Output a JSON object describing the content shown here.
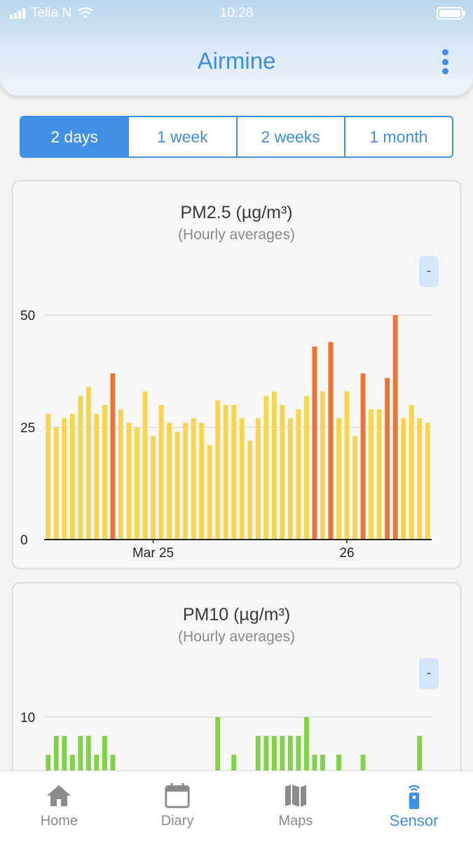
{
  "status_bar": {
    "carrier": "Telia N",
    "time": "10:28"
  },
  "header": {
    "title": "Airmine"
  },
  "range_tabs": {
    "items": [
      "2 days",
      "1 week",
      "2 weeks",
      "1 month"
    ],
    "selected": "2 days"
  },
  "colors": {
    "accent": "#3f8fe6",
    "pm25_normal": "#f8d54a",
    "pm25_high": "#ee7430",
    "pm10": "#7ed444"
  },
  "cards": [
    {
      "title": "PM2.5 (µg/m³)",
      "subtitle": "(Hourly averages)",
      "collapse_label": "-"
    },
    {
      "title": "PM10 (µg/m³)",
      "subtitle": "(Hourly averages)",
      "collapse_label": "-"
    }
  ],
  "chart_data": [
    {
      "type": "bar",
      "title": "PM2.5 (µg/m³)",
      "subtitle": "(Hourly averages)",
      "unit": "µg/m³",
      "ylim": [
        0,
        50
      ],
      "yticks": [
        0,
        25,
        50
      ],
      "x_tick_labels": [
        {
          "label": "Mar 25",
          "index": 13
        },
        {
          "label": "26",
          "index": 37
        }
      ],
      "grid": true,
      "values": [
        28,
        25,
        27,
        28,
        32,
        34,
        28,
        30,
        37,
        29,
        26,
        25,
        33,
        23,
        30,
        26,
        24,
        26,
        27,
        26,
        21,
        31,
        30,
        30,
        27,
        22,
        27,
        32,
        33,
        30,
        27,
        29,
        32,
        43,
        33,
        44,
        27,
        33,
        23,
        37,
        29,
        29,
        36,
        50,
        27,
        30,
        27,
        26
      ],
      "high_threshold": 35
    },
    {
      "type": "bar",
      "title": "PM10 (µg/m³)",
      "subtitle": "(Hourly averages)",
      "unit": "µg/m³",
      "yticks": [
        10
      ],
      "grid": true,
      "values": [
        6,
        8,
        8,
        6,
        8,
        8,
        6,
        8,
        6,
        null,
        null,
        null,
        null,
        null,
        null,
        null,
        null,
        null,
        null,
        null,
        null,
        10,
        null,
        6,
        null,
        null,
        8,
        8,
        8,
        8,
        8,
        8,
        10,
        6,
        6,
        null,
        6,
        null,
        null,
        6,
        null,
        null,
        null,
        null,
        null,
        null,
        8,
        null
      ]
    }
  ],
  "tabbar": {
    "items": [
      {
        "label": "Home",
        "icon": "home-icon"
      },
      {
        "label": "Diary",
        "icon": "calendar-icon"
      },
      {
        "label": "Maps",
        "icon": "map-icon"
      },
      {
        "label": "Sensor",
        "icon": "sensor-icon"
      }
    ],
    "active": "Sensor"
  }
}
